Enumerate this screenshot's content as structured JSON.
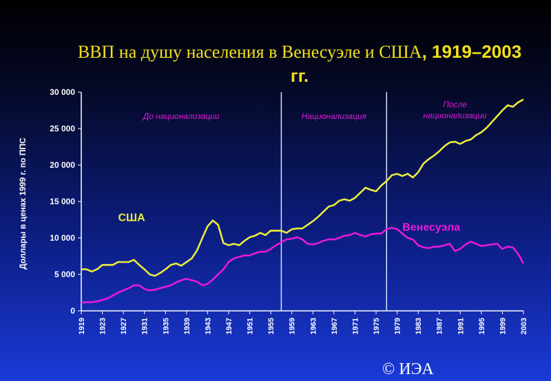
{
  "title": {
    "main": "ВВП на душу населения в Венесуэле и США",
    "years": ", 1919–2003",
    "suffix": "гг."
  },
  "copyright": "© ИЭА",
  "colors": {
    "usa": "#ecec3c",
    "venezuela": "#e81ad8",
    "period_text": "#e01ad8",
    "axis": "#ffffff"
  },
  "chart_data": {
    "type": "line",
    "ylabel": "Доллары в ценах 1999 г. по ППС",
    "xlim": [
      1919,
      2003
    ],
    "ylim": [
      0,
      30000
    ],
    "yticks": [
      0,
      5000,
      10000,
      15000,
      20000,
      25000,
      30000
    ],
    "ytick_labels": [
      "0",
      "5 000",
      "10 000",
      "15 000",
      "20 000",
      "25 000",
      "30 000"
    ],
    "xticks": [
      1919,
      1923,
      1927,
      1931,
      1935,
      1939,
      1943,
      1947,
      1951,
      1955,
      1959,
      1963,
      1967,
      1971,
      1975,
      1979,
      1983,
      1987,
      1991,
      1995,
      1999,
      2003
    ],
    "grid": false,
    "vertical_lines": [
      1957,
      1977
    ],
    "periods": [
      {
        "label": "До национализации",
        "x": 1938
      },
      {
        "label": "Национализация",
        "x": 1967
      },
      {
        "label": "После национализации",
        "x": 1990
      }
    ],
    "series": [
      {
        "name": "США",
        "color": "#ecec3c",
        "x": [
          1919,
          1920,
          1921,
          1922,
          1923,
          1924,
          1925,
          1926,
          1927,
          1928,
          1929,
          1930,
          1931,
          1932,
          1933,
          1934,
          1935,
          1936,
          1937,
          1938,
          1939,
          1940,
          1941,
          1942,
          1943,
          1944,
          1945,
          1946,
          1947,
          1948,
          1949,
          1950,
          1951,
          1952,
          1953,
          1954,
          1955,
          1956,
          1957,
          1958,
          1959,
          1960,
          1961,
          1962,
          1963,
          1964,
          1965,
          1966,
          1967,
          1968,
          1969,
          1970,
          1971,
          1972,
          1973,
          1974,
          1975,
          1976,
          1977,
          1978,
          1979,
          1980,
          1981,
          1982,
          1983,
          1984,
          1985,
          1986,
          1987,
          1988,
          1989,
          1990,
          1991,
          1992,
          1993,
          1994,
          1995,
          1996,
          1997,
          1998,
          1999,
          2000,
          2001,
          2002,
          2003
        ],
        "values": [
          5700,
          5700,
          5400,
          5700,
          6300,
          6300,
          6300,
          6700,
          6700,
          6700,
          7000,
          6300,
          5700,
          5000,
          4800,
          5200,
          5700,
          6300,
          6500,
          6200,
          6700,
          7200,
          8300,
          10000,
          11600,
          12400,
          11800,
          9300,
          9000,
          9200,
          9000,
          9600,
          10100,
          10300,
          10700,
          10400,
          11000,
          11000,
          11000,
          10700,
          11200,
          11300,
          11300,
          11800,
          12300,
          12900,
          13600,
          14300,
          14500,
          15100,
          15300,
          15100,
          15500,
          16200,
          16900,
          16600,
          16400,
          17200,
          17800,
          18600,
          18800,
          18500,
          18800,
          18300,
          19000,
          20200,
          20800,
          21300,
          21900,
          22600,
          23100,
          23200,
          22900,
          23300,
          23500,
          24100,
          24500,
          25100,
          25900,
          26700,
          27500,
          28200,
          28000,
          28600,
          29000
        ]
      },
      {
        "name": "Венесуэла",
        "color": "#e81ad8",
        "x": [
          1919,
          1920,
          1921,
          1922,
          1923,
          1924,
          1925,
          1926,
          1927,
          1928,
          1929,
          1930,
          1931,
          1932,
          1933,
          1934,
          1935,
          1936,
          1937,
          1938,
          1939,
          1940,
          1941,
          1942,
          1943,
          1944,
          1945,
          1946,
          1947,
          1948,
          1949,
          1950,
          1951,
          1952,
          1953,
          1954,
          1955,
          1956,
          1957,
          1958,
          1959,
          1960,
          1961,
          1962,
          1963,
          1964,
          1965,
          1966,
          1967,
          1968,
          1969,
          1970,
          1971,
          1972,
          1973,
          1974,
          1975,
          1976,
          1977,
          1978,
          1979,
          1980,
          1981,
          1982,
          1983,
          1984,
          1985,
          1986,
          1987,
          1988,
          1989,
          1990,
          1991,
          1992,
          1993,
          1994,
          1995,
          1996,
          1997,
          1998,
          1999,
          2000,
          2001,
          2002,
          2003
        ],
        "values": [
          1100,
          1200,
          1200,
          1300,
          1500,
          1700,
          2100,
          2500,
          2800,
          3100,
          3500,
          3500,
          3000,
          2800,
          2900,
          3100,
          3300,
          3500,
          3900,
          4200,
          4400,
          4200,
          4000,
          3500,
          3700,
          4300,
          5000,
          5700,
          6700,
          7200,
          7400,
          7600,
          7600,
          7900,
          8100,
          8100,
          8500,
          9000,
          9400,
          9800,
          9900,
          10100,
          9800,
          9200,
          9100,
          9300,
          9600,
          9800,
          9800,
          10000,
          10300,
          10400,
          10700,
          10400,
          10200,
          10500,
          10600,
          10600,
          11200,
          11400,
          11200,
          10600,
          10000,
          9800,
          9000,
          8700,
          8600,
          8800,
          8800,
          9000,
          9200,
          8200,
          8500,
          9100,
          9500,
          9200,
          8900,
          9000,
          9100,
          9200,
          8500,
          8800,
          8700,
          7800,
          6500
        ]
      }
    ],
    "series_labels": [
      {
        "text": "США",
        "x": 1926,
        "y": 12300,
        "color": "#ecec3c"
      },
      {
        "text": "Венесуэла",
        "x": 1980,
        "y": 11000,
        "color": "#e81ad8"
      }
    ]
  }
}
